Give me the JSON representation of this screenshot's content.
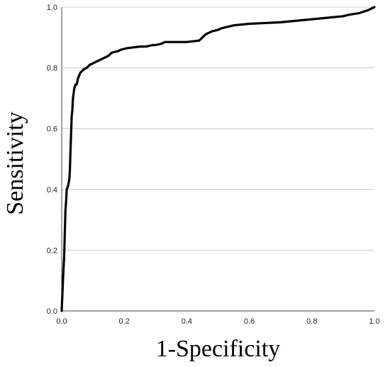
{
  "chart_data": {
    "type": "line",
    "title": "",
    "xlabel": "1-Specificity",
    "ylabel": "Sensitivity",
    "xlim": [
      0,
      1
    ],
    "ylim": [
      0,
      1
    ],
    "x_ticks": [
      "0.0",
      "0.2",
      "0.4",
      "0.6",
      "0.8",
      "1.0"
    ],
    "y_ticks": [
      "0.0",
      "0.2",
      "0.4",
      "0.6",
      "0.8",
      "1.0"
    ],
    "grid": "horizontal",
    "legend": "none",
    "line_color": "#000000",
    "series": [
      {
        "x": [
          0.0,
          0.002,
          0.004,
          0.006,
          0.008,
          0.01,
          0.012,
          0.014,
          0.016,
          0.02,
          0.024,
          0.026,
          0.028,
          0.03,
          0.032,
          0.034,
          0.036,
          0.04,
          0.044,
          0.048,
          0.05,
          0.052,
          0.056,
          0.06,
          0.066,
          0.07,
          0.08,
          0.09,
          0.11,
          0.13,
          0.15,
          0.16,
          0.18,
          0.19,
          0.21,
          0.25,
          0.27,
          0.29,
          0.3,
          0.32,
          0.33,
          0.35,
          0.4,
          0.44,
          0.45,
          0.46,
          0.48,
          0.5,
          0.51,
          0.55,
          0.6,
          0.7,
          0.8,
          0.85,
          0.9,
          0.92,
          0.95,
          0.98,
          1.0
        ],
        "y": [
          0.0,
          0.05,
          0.1,
          0.14,
          0.18,
          0.26,
          0.33,
          0.36,
          0.4,
          0.41,
          0.43,
          0.46,
          0.52,
          0.58,
          0.64,
          0.66,
          0.7,
          0.73,
          0.745,
          0.745,
          0.755,
          0.765,
          0.775,
          0.785,
          0.79,
          0.795,
          0.8,
          0.81,
          0.82,
          0.83,
          0.84,
          0.85,
          0.855,
          0.86,
          0.865,
          0.87,
          0.87,
          0.875,
          0.875,
          0.88,
          0.885,
          0.885,
          0.885,
          0.89,
          0.9,
          0.91,
          0.92,
          0.925,
          0.93,
          0.94,
          0.945,
          0.95,
          0.96,
          0.965,
          0.97,
          0.975,
          0.98,
          0.99,
          1.0
        ]
      }
    ]
  }
}
